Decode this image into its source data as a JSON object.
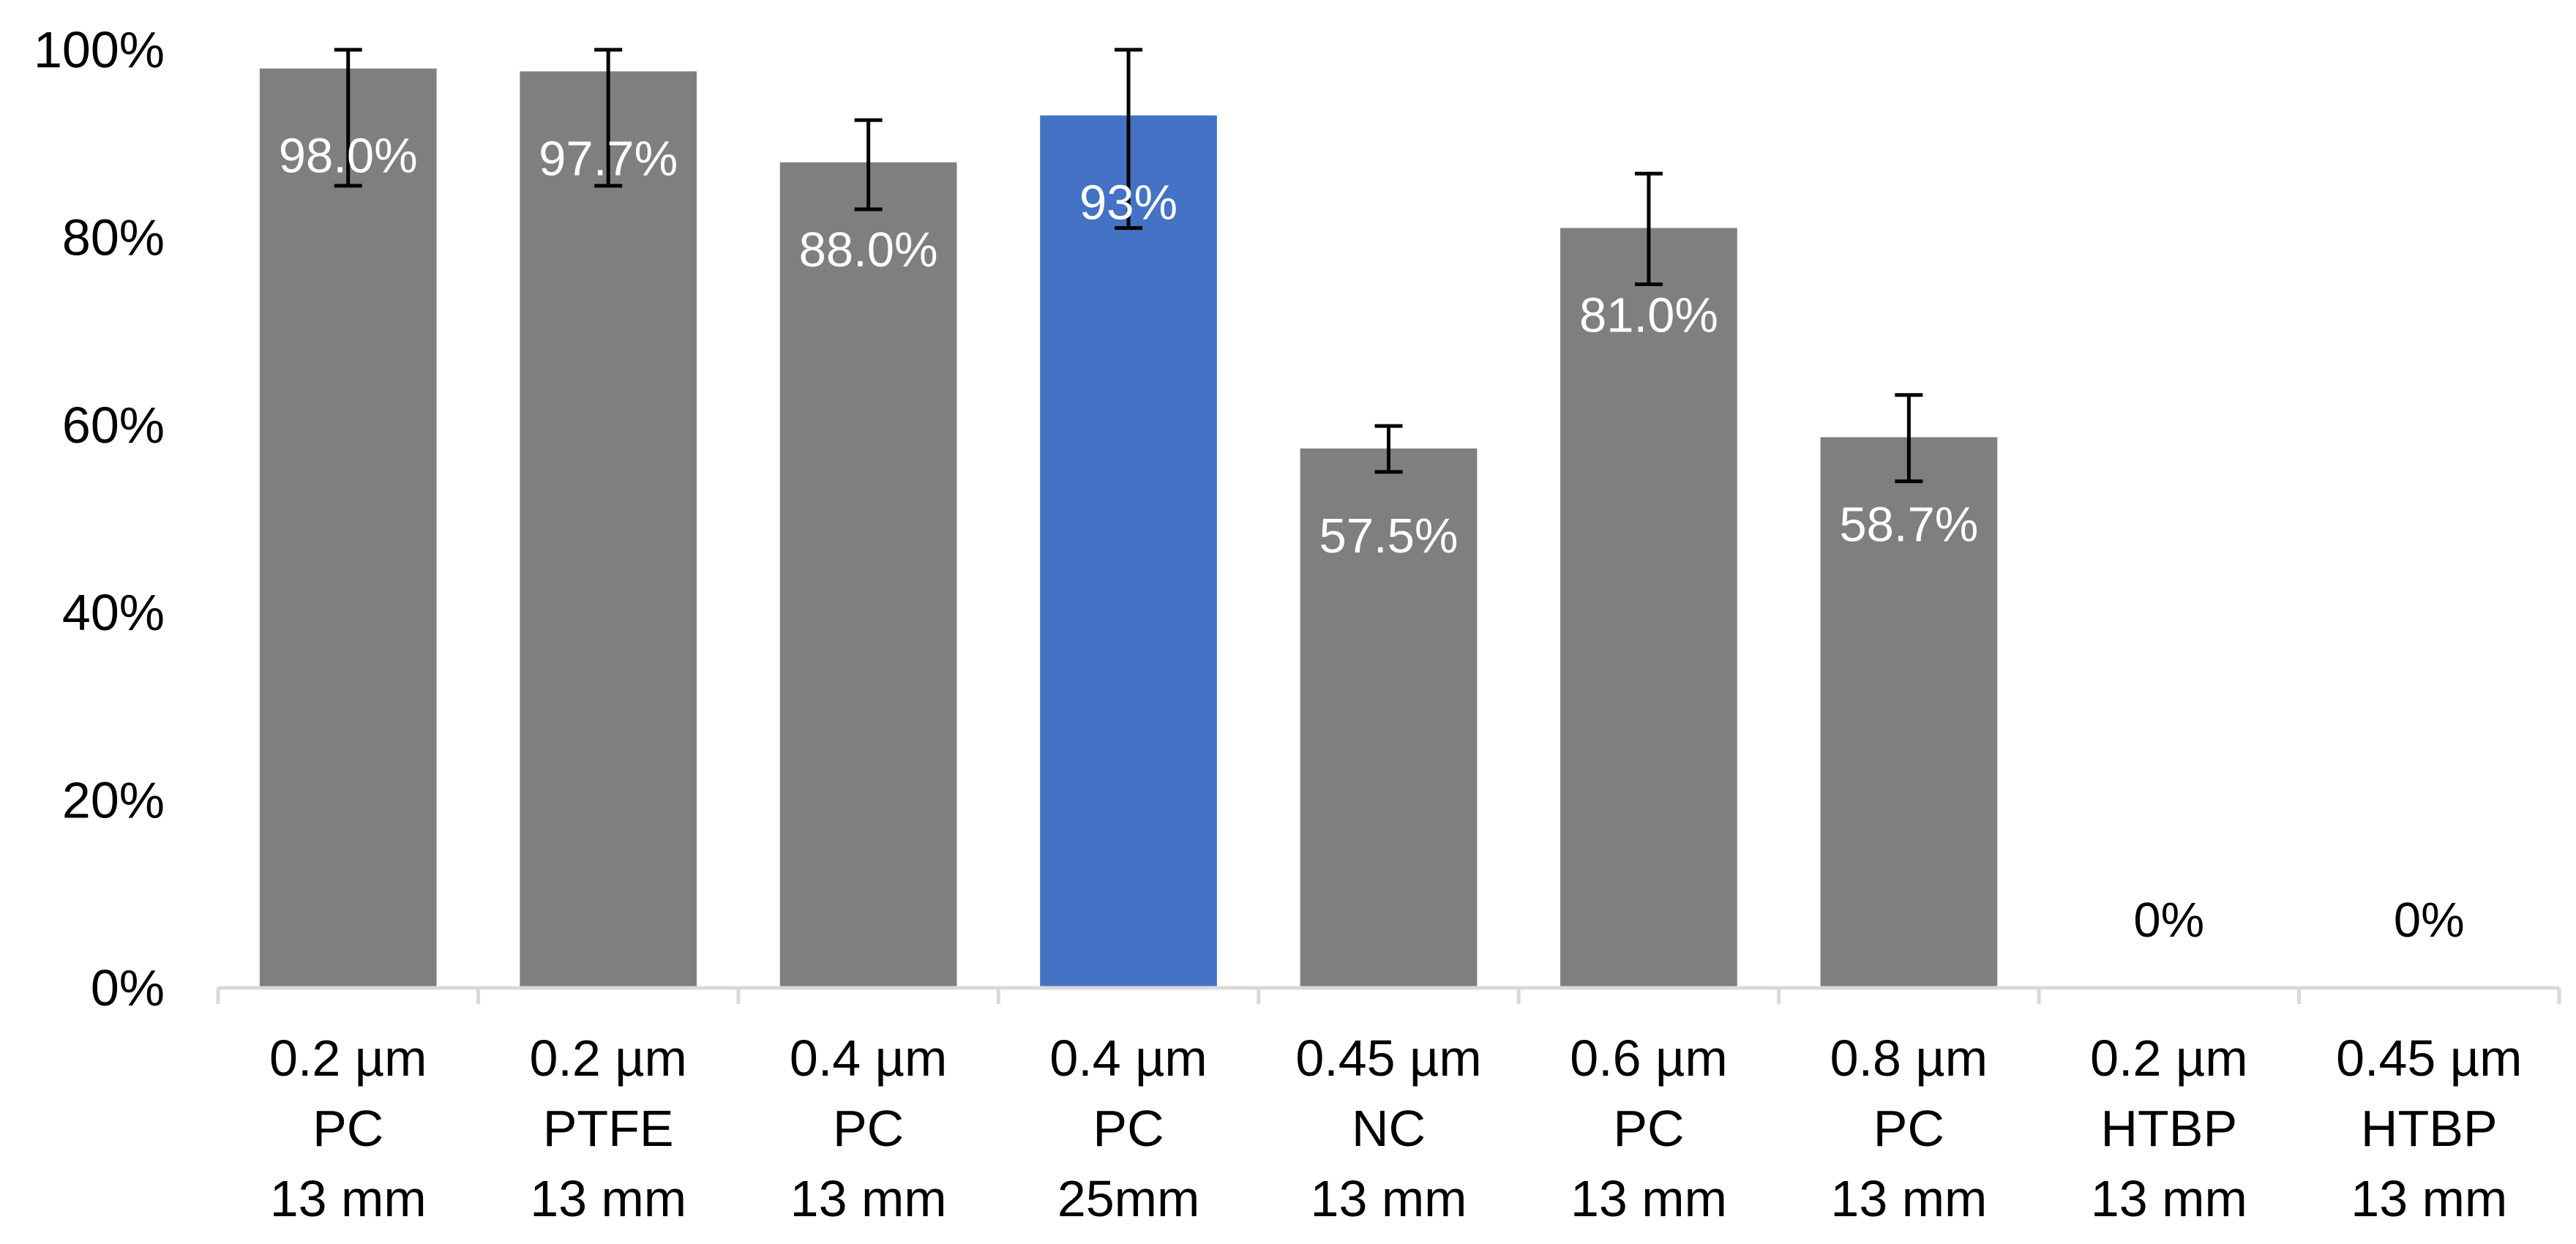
{
  "chart_data": {
    "type": "bar",
    "title": "",
    "xlabel": "",
    "ylabel": "",
    "ylim": [
      0,
      100
    ],
    "yticks": [
      0,
      20,
      40,
      60,
      80,
      100
    ],
    "ytick_labels": [
      "0%",
      "20%",
      "40%",
      "60%",
      "80%",
      "100%"
    ],
    "grid": false,
    "categories": [
      [
        "0.2 µm",
        "PC",
        "13 mm"
      ],
      [
        "0.2 µm",
        "PTFE",
        "13 mm"
      ],
      [
        "0.4 µm",
        "PC",
        "13 mm"
      ],
      [
        "0.4 µm",
        "PC",
        "25mm"
      ],
      [
        "0.45 µm",
        "NC",
        "13 mm"
      ],
      [
        "0.6 µm",
        "PC",
        "13 mm"
      ],
      [
        "0.8 µm",
        "PC",
        "13 mm"
      ],
      [
        "0.2 µm",
        "HTBP",
        "13 mm"
      ],
      [
        "0.45 µm",
        "HTBP",
        "13 mm"
      ]
    ],
    "values": [
      98.0,
      97.7,
      88.0,
      93.0,
      57.5,
      81.0,
      58.7,
      0,
      0
    ],
    "error_low": [
      85.5,
      85.5,
      83.0,
      81.0,
      55.0,
      75.0,
      54.0,
      null,
      null
    ],
    "error_high": [
      100,
      100,
      92.5,
      100,
      59.9,
      86.8,
      63.2,
      null,
      null
    ],
    "data_labels": [
      "98.0%",
      "97.7%",
      "88.0%",
      "93%",
      "57.5%",
      "81.0%",
      "58.7%",
      "0%",
      "0%"
    ],
    "bar_colors": [
      "#7f7f7f",
      "#7f7f7f",
      "#7f7f7f",
      "#4472c4",
      "#7f7f7f",
      "#7f7f7f",
      "#7f7f7f",
      "#7f7f7f",
      "#7f7f7f"
    ]
  }
}
